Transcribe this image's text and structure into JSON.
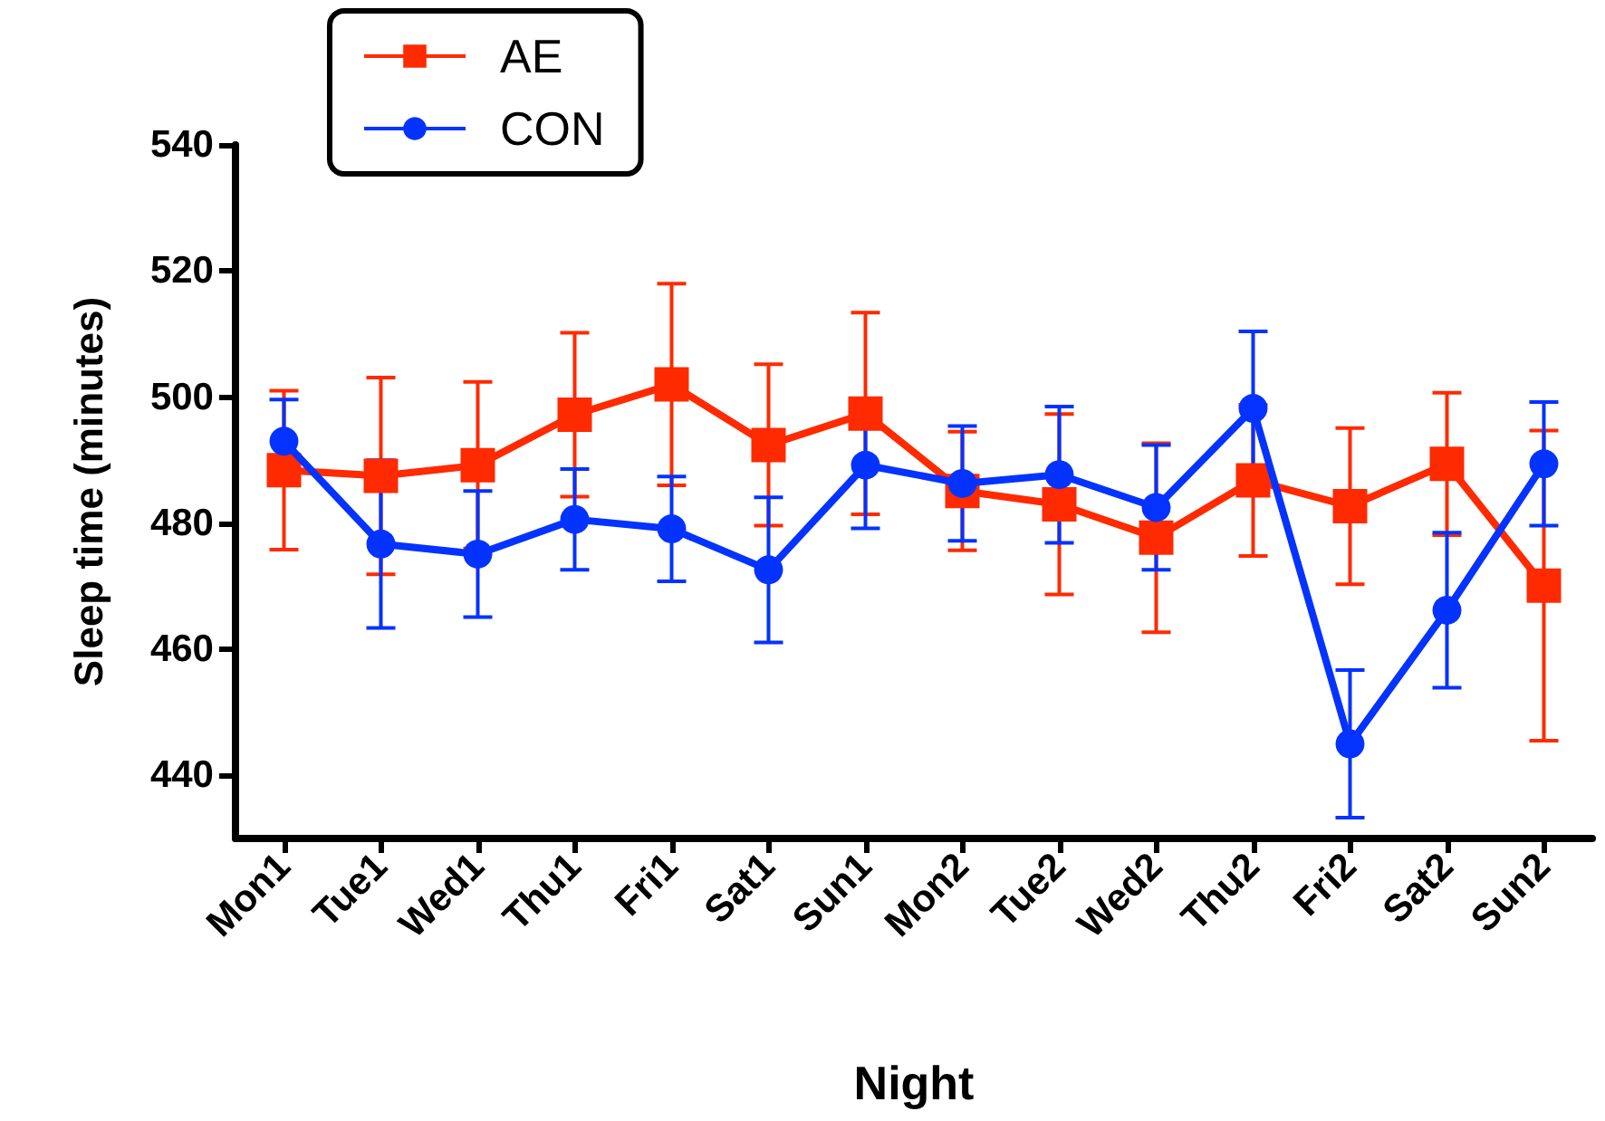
{
  "chart_data": {
    "type": "line",
    "xlabel": "Night",
    "ylabel": "Sleep time (minutes)",
    "categories": [
      "Mon1",
      "Tue1",
      "Wed1",
      "Thu1",
      "Fri1",
      "Sat1",
      "Sun1",
      "Mon2",
      "Tue2",
      "Wed2",
      "Thu2",
      "Fri2",
      "Sat2",
      "Sun2"
    ],
    "series": [
      {
        "name": "AE",
        "color": "#ff2a00",
        "marker": "square",
        "values": [
          488.4,
          487.5,
          489.2,
          497.2,
          502,
          492.4,
          497.4,
          485.1,
          483,
          477.7,
          486.8,
          482.7,
          489.4,
          470.1
        ],
        "errors": [
          12.6,
          15.6,
          13.2,
          13,
          16,
          12.8,
          16,
          9.4,
          14.3,
          15,
          12,
          12.4,
          11.3,
          24.6
        ]
      },
      {
        "name": "CON",
        "color": "#0433ff",
        "marker": "circle",
        "values": [
          493,
          476.7,
          475.1,
          480.6,
          479.1,
          472.6,
          489.2,
          486.3,
          487.7,
          482.5,
          498.2,
          445,
          466.2,
          489.4
        ],
        "errors": [
          6.6,
          13.3,
          10,
          8,
          8.3,
          11.5,
          10,
          9.1,
          10.8,
          9.9,
          12.2,
          11.7,
          12.3,
          9.8
        ]
      }
    ],
    "ylim": [
      430,
      540
    ],
    "yticks": [
      440,
      460,
      480,
      500,
      520,
      540
    ],
    "grid": false,
    "legend": "top left",
    "line_style": "solid"
  }
}
